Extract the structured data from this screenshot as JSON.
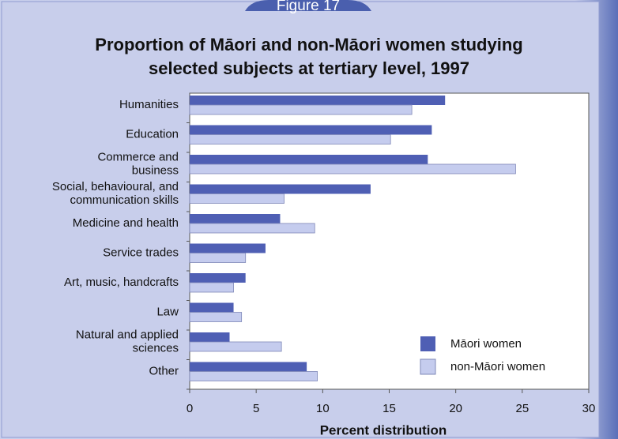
{
  "chart_data": {
    "type": "bar",
    "orientation": "horizontal",
    "figure_label": "Figure 17",
    "title": "Proportion of Māori and non-Māori women studying\nselected subjects at tertiary level, 1997",
    "x_label": "Percent distribution",
    "categories": [
      "Humanities",
      "Education",
      "Commerce and\nbusiness",
      "Social, behavioural, and\ncommunication skills",
      "Medicine and health",
      "Service trades",
      "Art, music, handcrafts",
      "Law",
      "Natural and applied\nsciences",
      "Other"
    ],
    "series": [
      {
        "name": "Māori women",
        "color": "#4f5fb4",
        "values": [
          19.2,
          18.2,
          17.9,
          13.6,
          6.8,
          5.7,
          4.2,
          3.3,
          3.0,
          8.8
        ]
      },
      {
        "name": "non-Māori women",
        "color": "#c5ccee",
        "values": [
          16.7,
          15.1,
          24.5,
          7.1,
          9.4,
          4.2,
          3.3,
          3.9,
          6.9,
          9.6
        ]
      }
    ],
    "xlim": [
      0,
      30
    ],
    "xticks": [
      0,
      5,
      10,
      15,
      20,
      25,
      30
    ],
    "legend": "lower right"
  }
}
